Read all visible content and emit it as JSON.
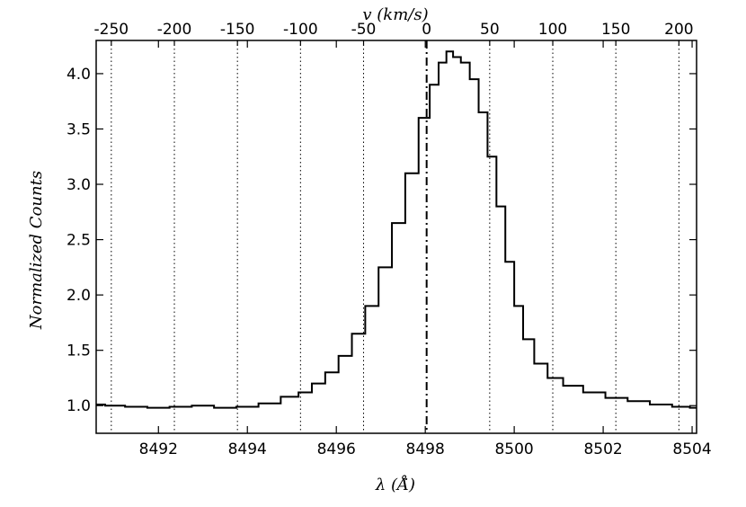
{
  "chart_data": {
    "type": "line",
    "title": "",
    "xlabel": "λ (Å̇)",
    "ylabel": "Normalized Counts",
    "top_xlabel": "v (km/s)",
    "xlim": [
      8490.6,
      8504.1
    ],
    "ylim": [
      0.75,
      4.3
    ],
    "top_xlim": [
      -262,
      214
    ],
    "x_ticks": [
      8492,
      8494,
      8496,
      8498,
      8500,
      8502,
      8504
    ],
    "y_ticks": [
      1.0,
      1.5,
      2.0,
      2.5,
      3.0,
      3.5,
      4.0
    ],
    "top_x_ticks": [
      -250,
      -200,
      -150,
      -100,
      -50,
      0,
      50,
      100,
      150,
      200
    ],
    "x_tick_labels": [
      "8492",
      "8494",
      "8496",
      "8498",
      "8500",
      "8502",
      "8504"
    ],
    "y_tick_labels": [
      "1.0",
      "1.5",
      "2.0",
      "2.5",
      "3.0",
      "3.5",
      "4.0"
    ],
    "top_x_tick_labels": [
      "-250",
      "-200",
      "-150",
      "-100",
      "-50",
      "0",
      "50",
      "100",
      "150",
      "200"
    ],
    "grid": "vertical dotted lines at velocity ticks",
    "reference_line": {
      "velocity": 0,
      "style": "dash-dot"
    },
    "series": [
      {
        "draw": "steps",
        "color": "#000000",
        "points": [
          [
            8490.6,
            1.01
          ],
          [
            8491.0,
            1.0
          ],
          [
            8491.5,
            0.99
          ],
          [
            8492.0,
            0.98
          ],
          [
            8492.5,
            0.99
          ],
          [
            8493.0,
            1.0
          ],
          [
            8493.5,
            0.98
          ],
          [
            8494.0,
            0.99
          ],
          [
            8494.5,
            1.02
          ],
          [
            8495.0,
            1.08
          ],
          [
            8495.3,
            1.12
          ],
          [
            8495.6,
            1.2
          ],
          [
            8495.9,
            1.3
          ],
          [
            8496.2,
            1.45
          ],
          [
            8496.5,
            1.65
          ],
          [
            8496.8,
            1.9
          ],
          [
            8497.1,
            2.25
          ],
          [
            8497.4,
            2.65
          ],
          [
            8497.7,
            3.1
          ],
          [
            8498.0,
            3.6
          ],
          [
            8498.2,
            3.9
          ],
          [
            8498.4,
            4.1
          ],
          [
            8498.55,
            4.2
          ],
          [
            8498.7,
            4.15
          ],
          [
            8498.9,
            4.1
          ],
          [
            8499.1,
            3.95
          ],
          [
            8499.3,
            3.65
          ],
          [
            8499.5,
            3.25
          ],
          [
            8499.7,
            2.8
          ],
          [
            8499.9,
            2.3
          ],
          [
            8500.1,
            1.9
          ],
          [
            8500.3,
            1.6
          ],
          [
            8500.6,
            1.38
          ],
          [
            8500.9,
            1.25
          ],
          [
            8501.3,
            1.18
          ],
          [
            8501.8,
            1.12
          ],
          [
            8502.3,
            1.07
          ],
          [
            8502.8,
            1.04
          ],
          [
            8503.3,
            1.01
          ],
          [
            8503.8,
            0.99
          ],
          [
            8504.1,
            0.98
          ]
        ]
      }
    ]
  }
}
